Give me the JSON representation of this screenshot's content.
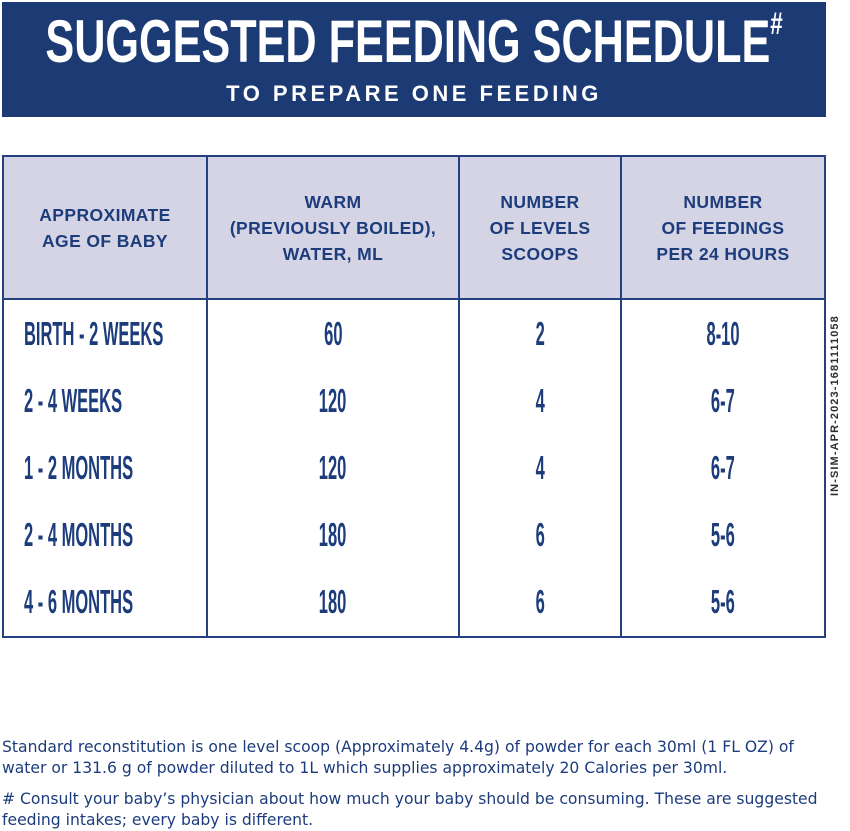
{
  "banner": {
    "title": "SUGGESTED FEEDING SCHEDULE",
    "title_superscript": "#",
    "subtitle": "TO PREPARE ONE FEEDING"
  },
  "table": {
    "headers": {
      "age": "APPROXIMATE\nAGE OF BABY",
      "water": "WARM\n(PREVIOUSLY BOILED),\nWATER, ML",
      "scoops": "NUMBER\nOF LEVELS\nSCOOPS",
      "feedings": "NUMBER\nOF FEEDINGS\nPER 24 HOURS"
    },
    "rows": [
      {
        "age": "BIRTH - 2 WEEKS",
        "water_ml": "60",
        "scoops": "2",
        "feedings": "8-10"
      },
      {
        "age": "2 - 4 WEEKS",
        "water_ml": "120",
        "scoops": "4",
        "feedings": "6-7"
      },
      {
        "age": "1 - 2 MONTHS",
        "water_ml": "120",
        "scoops": "4",
        "feedings": "6-7"
      },
      {
        "age": "2 - 4 MONTHS",
        "water_ml": "180",
        "scoops": "6",
        "feedings": "5-6"
      },
      {
        "age": "4 - 6 MONTHS",
        "water_ml": "180",
        "scoops": "6",
        "feedings": "5-6"
      }
    ]
  },
  "side_code": "IN-SIM-APR-2023-1681111058",
  "footnotes": {
    "reconstitution": "Standard reconstitution is one level scoop (Approximately 4.4g) of powder for each 30ml (1 FL OZ) of\nwater or 131.6 g of powder diluted to 1L which supplies approximately 20 Calories per 30ml.",
    "consult": "# Consult your baby’s physician about how much your baby should be consuming. These are suggested\nfeeding intakes; every baby is different."
  },
  "colors": {
    "navy": "#1c3a74",
    "border_navy": "#24407f",
    "text_navy": "#1d3c7c",
    "header_bg": "#d4d4e5",
    "code_text": "#2e2e2e"
  }
}
